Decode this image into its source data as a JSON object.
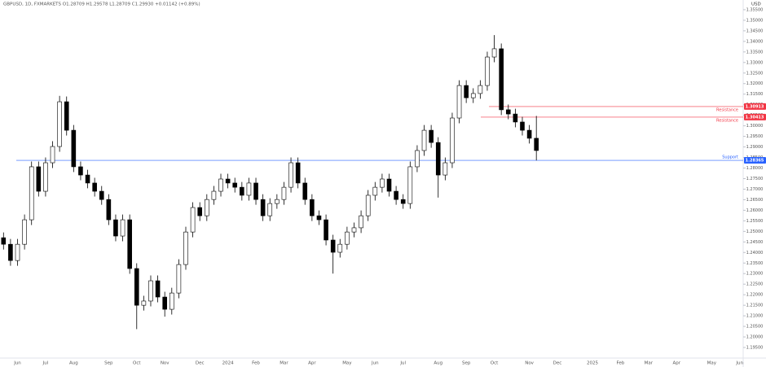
{
  "chart_data": {
    "type": "candlestick",
    "title": "GBPUSD, 1D, FXMARKETS O1.28709 H1.29578 L1.28709 C1.29930 +0.01142 (+0.89%)",
    "y_axis_label": "USD",
    "up_color": "#ffffff",
    "down_color": "#000000",
    "wick_color": "#000000",
    "categories": [
      null,
      null,
      "Jun",
      null,
      null,
      null,
      "Jul",
      null,
      null,
      null,
      "Aug",
      null,
      null,
      null,
      null,
      "Sep",
      null,
      null,
      null,
      "Oct",
      null,
      null,
      null,
      "Nov",
      null,
      null,
      null,
      null,
      "Dec",
      null,
      null,
      null,
      "2024",
      null,
      null,
      null,
      "Feb",
      null,
      null,
      null,
      "Mar",
      null,
      null,
      null,
      "Apr",
      null,
      null,
      null,
      null,
      "May",
      null,
      null,
      null,
      "Jun",
      null,
      null,
      null,
      "Jul",
      null,
      null,
      null,
      null,
      "Aug",
      null,
      null,
      null,
      "Sep",
      null,
      null,
      null,
      "Oct",
      null,
      null,
      null,
      null,
      "Nov",
      null,
      null,
      null,
      "Dec",
      null,
      null,
      null,
      null,
      "2025",
      null,
      null,
      null,
      "Feb",
      null,
      null,
      null,
      "Mar",
      null,
      null,
      null,
      "Apr",
      null,
      null,
      null,
      null,
      "May",
      null,
      null,
      null,
      "Jun"
    ],
    "open": [
      1.247,
      1.2439,
      1.2362,
      1.2439,
      1.2555,
      1.2806,
      1.269,
      1.2825,
      1.2902,
      1.3114,
      1.2979,
      1.2806,
      1.2767,
      1.2729,
      1.269,
      1.2651,
      1.2555,
      1.2478,
      1.2555,
      1.2324,
      1.215,
      1.217,
      1.2266,
      1.2189,
      1.2131,
      1.2208,
      1.2343,
      1.2497,
      1.2613,
      1.2574,
      1.2651,
      1.269,
      1.2748,
      1.2729,
      1.2709,
      1.2671,
      1.2729,
      1.2651,
      1.2574,
      1.2632,
      1.2651,
      1.2709,
      1.2825,
      1.2729,
      1.2651,
      1.2574,
      1.2555,
      1.2459,
      1.2401,
      1.2439,
      1.2497,
      1.2517,
      1.2574,
      1.2671,
      1.2709,
      1.2748,
      1.269,
      1.2651,
      1.2632,
      1.2806,
      1.2883,
      1.2979,
      1.2921,
      1.2767,
      1.2825,
      1.3037,
      1.3191,
      1.3133,
      1.3153,
      1.3191,
      1.3326,
      1.3365,
      1.3076,
      1.3056,
      1.3018,
      1.2979,
      1.2941,
      null,
      null,
      null,
      null,
      null,
      null,
      null,
      null,
      null,
      null,
      null,
      null,
      null,
      null,
      null,
      null,
      null,
      null,
      null,
      null,
      null,
      null,
      null,
      null,
      null,
      null,
      null,
      null,
      null
    ],
    "high": [
      1.2495,
      1.2464,
      1.2464,
      1.258,
      1.2831,
      1.2831,
      1.285,
      1.2927,
      1.3142,
      1.3139,
      1.3004,
      1.2831,
      1.2792,
      1.2754,
      1.2715,
      1.2676,
      1.258,
      1.258,
      1.258,
      1.2349,
      1.2195,
      1.2291,
      1.2291,
      1.2214,
      1.2233,
      1.2368,
      1.2522,
      1.2638,
      1.2638,
      1.2676,
      1.2715,
      1.2773,
      1.2773,
      1.2754,
      1.2734,
      1.2754,
      1.2754,
      1.2676,
      1.2657,
      1.2676,
      1.2734,
      1.285,
      1.285,
      1.2754,
      1.2676,
      1.2599,
      1.258,
      1.2484,
      1.2464,
      1.2522,
      1.2542,
      1.2599,
      1.2696,
      1.2734,
      1.2773,
      1.2773,
      1.2715,
      1.2676,
      1.2831,
      1.2908,
      1.3004,
      1.3004,
      1.2946,
      1.285,
      1.3062,
      1.3216,
      1.3216,
      1.3178,
      1.3216,
      1.3351,
      1.343,
      1.339,
      1.3101,
      1.3081,
      1.3043,
      1.3004,
      1.3047,
      null,
      null,
      null,
      null,
      null,
      null,
      null,
      null,
      null,
      null,
      null,
      null,
      null,
      null,
      null,
      null,
      null,
      null,
      null,
      null,
      null,
      null,
      null,
      null,
      null,
      null,
      null,
      null,
      null
    ],
    "low": [
      1.2414,
      1.2337,
      1.2337,
      1.2414,
      1.253,
      1.2665,
      1.2665,
      1.28,
      1.2877,
      1.2954,
      1.2781,
      1.2742,
      1.2704,
      1.2665,
      1.2626,
      1.253,
      1.2453,
      1.2453,
      1.2299,
      1.2037,
      1.2125,
      1.2145,
      1.2164,
      1.2096,
      1.2106,
      1.2183,
      1.2318,
      1.2472,
      1.2549,
      1.2549,
      1.2626,
      1.2665,
      1.2704,
      1.2684,
      1.2646,
      1.2646,
      1.2626,
      1.2549,
      1.2549,
      1.2607,
      1.2626,
      1.2684,
      1.2704,
      1.2626,
      1.2549,
      1.253,
      1.2434,
      1.23,
      1.2376,
      1.2414,
      1.2472,
      1.2492,
      1.2549,
      1.2646,
      1.2684,
      1.2665,
      1.2626,
      1.2607,
      1.2607,
      1.2781,
      1.2858,
      1.2896,
      1.266,
      1.2742,
      1.28,
      1.3012,
      1.3108,
      1.3108,
      1.3128,
      1.3166,
      1.3301,
      1.3051,
      1.3031,
      1.2993,
      1.2954,
      1.2916,
      1.2836,
      null,
      null,
      null,
      null,
      null,
      null,
      null,
      null,
      null,
      null,
      null,
      null,
      null,
      null,
      null,
      null,
      null,
      null,
      null,
      null,
      null,
      null,
      null,
      null,
      null,
      null,
      null,
      null,
      null
    ],
    "close": [
      1.2439,
      1.2362,
      1.2439,
      1.2555,
      1.2806,
      1.269,
      1.2825,
      1.2902,
      1.3114,
      1.2979,
      1.2806,
      1.2767,
      1.2729,
      1.269,
      1.2651,
      1.2555,
      1.2478,
      1.2555,
      1.2324,
      1.215,
      1.217,
      1.2266,
      1.2189,
      1.2131,
      1.2208,
      1.2343,
      1.2497,
      1.2613,
      1.2574,
      1.2651,
      1.269,
      1.2748,
      1.2729,
      1.2709,
      1.2671,
      1.2729,
      1.2651,
      1.2574,
      1.2632,
      1.2651,
      1.2709,
      1.2825,
      1.2729,
      1.2651,
      1.2574,
      1.2555,
      1.2459,
      1.2401,
      1.2439,
      1.2497,
      1.2517,
      1.2574,
      1.2671,
      1.2709,
      1.2748,
      1.269,
      1.2651,
      1.2632,
      1.2806,
      1.2883,
      1.2979,
      1.2921,
      1.2767,
      1.2825,
      1.3037,
      1.3191,
      1.3133,
      1.3153,
      1.3191,
      1.3326,
      1.3365,
      1.3076,
      1.3056,
      1.3018,
      1.2979,
      1.2941,
      1.2883,
      null,
      null,
      null,
      null,
      null,
      null,
      null,
      null,
      null,
      null,
      null,
      null,
      null,
      null,
      null,
      null,
      null,
      null,
      null,
      null,
      null,
      null,
      null,
      null,
      null,
      null,
      null,
      null,
      null
    ],
    "lines": [
      {
        "value": 1.30913,
        "label": "Resistance",
        "color": "#f23645"
      },
      {
        "value": 1.30413,
        "label": "Resistance",
        "color": "#f23645"
      },
      {
        "value": 1.28365,
        "label": "Support",
        "color": "#2962ff"
      }
    ],
    "ylim": [
      1.19,
      1.3596
    ],
    "yticks": [
      {
        "value": 1.195,
        "label": "1.19500"
      },
      {
        "value": 1.2,
        "label": "1.20000"
      },
      {
        "value": 1.205,
        "label": "1.20500"
      },
      {
        "value": 1.21,
        "label": "1.21000"
      },
      {
        "value": 1.215,
        "label": "1.21500"
      },
      {
        "value": 1.22,
        "label": "1.22000"
      },
      {
        "value": 1.225,
        "label": "1.22500"
      },
      {
        "value": 1.23,
        "label": "1.23000"
      },
      {
        "value": 1.235,
        "label": "1.23500"
      },
      {
        "value": 1.24,
        "label": "1.24000"
      },
      {
        "value": 1.245,
        "label": "1.24500"
      },
      {
        "value": 1.25,
        "label": "1.25000"
      },
      {
        "value": 1.255,
        "label": "1.25500"
      },
      {
        "value": 1.26,
        "label": "1.26000"
      },
      {
        "value": 1.265,
        "label": "1.26500"
      },
      {
        "value": 1.27,
        "label": "1.27000"
      },
      {
        "value": 1.275,
        "label": "1.27500"
      },
      {
        "value": 1.28,
        "label": "1.28000"
      },
      {
        "value": 1.285,
        "label": "1.28500"
      },
      {
        "value": 1.29,
        "label": "1.29000"
      },
      {
        "value": 1.295,
        "label": "1.29500"
      },
      {
        "value": 1.3,
        "label": "1.30000"
      },
      {
        "value": 1.305,
        "label": "1.30500"
      },
      {
        "value": 1.31,
        "label": "1.31000"
      },
      {
        "value": 1.315,
        "label": "1.31500"
      },
      {
        "value": 1.32,
        "label": "1.32000"
      },
      {
        "value": 1.325,
        "label": "1.32500"
      },
      {
        "value": 1.33,
        "label": "1.33000"
      },
      {
        "value": 1.335,
        "label": "1.33500"
      },
      {
        "value": 1.34,
        "label": "1.34000"
      },
      {
        "value": 1.345,
        "label": "1.34500"
      },
      {
        "value": 1.35,
        "label": "1.35000"
      },
      {
        "value": 1.355,
        "label": "1.35500"
      }
    ],
    "grid": false
  }
}
